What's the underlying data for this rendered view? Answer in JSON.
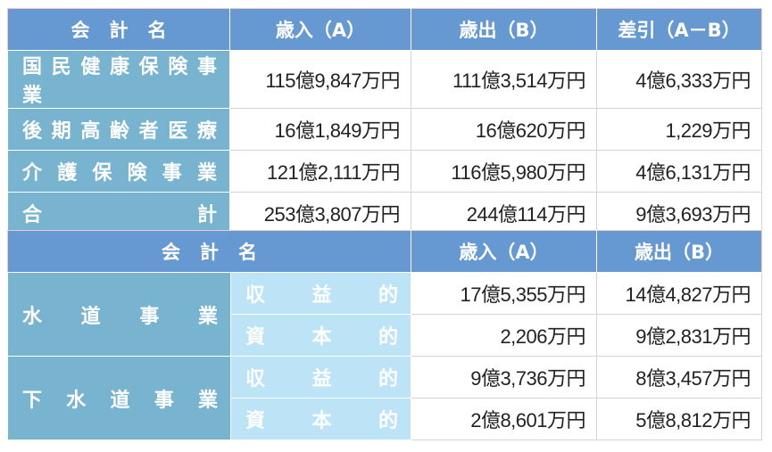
{
  "colors": {
    "header": "#6699d1",
    "label": "#78b3d0",
    "sublabel": "#bde3f6",
    "header_border": "#f2c4da"
  },
  "table1": {
    "headers": [
      "会計名",
      "歳入（A）",
      "歳出（B）",
      "差引（A－B）"
    ],
    "rows": [
      {
        "name": "国民健康保険事業",
        "revenue": "115億9,847万円",
        "expenditure": "111億3,514万円",
        "difference": "4億6,333万円"
      },
      {
        "name": "後期高齢者医療",
        "revenue": "16億1,849万円",
        "expenditure": "16億620万円",
        "difference": "1,229万円"
      },
      {
        "name": "介護保険事業",
        "revenue": "121億2,111万円",
        "expenditure": "116億5,980万円",
        "difference": "4億6,131万円"
      },
      {
        "name": "合計",
        "revenue": "253億3,807万円",
        "expenditure": "244億114万円",
        "difference": "9億3,693万円"
      }
    ]
  },
  "table2": {
    "headers": [
      "会計名",
      "歳入（A）",
      "歳出（B）"
    ],
    "groups": [
      {
        "name": "水道事業",
        "rows": [
          {
            "type": "収益的",
            "revenue": "17億5,355万円",
            "expenditure": "14億4,827万円"
          },
          {
            "type": "資本的",
            "revenue": "2,206万円",
            "expenditure": "9億2,831万円"
          }
        ]
      },
      {
        "name": "下水道事業",
        "rows": [
          {
            "type": "収益的",
            "revenue": "9億3,736万円",
            "expenditure": "8億3,457万円"
          },
          {
            "type": "資本的",
            "revenue": "2億8,601万円",
            "expenditure": "5億8,812万円"
          }
        ]
      }
    ]
  }
}
